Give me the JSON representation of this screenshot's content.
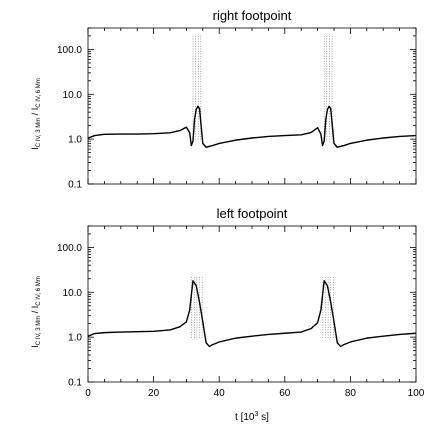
{
  "chart_data": [
    {
      "type": "line",
      "title": "right footpoint",
      "ylabel": "I",
      "xlim": [
        0,
        100
      ],
      "ylim": [
        0.1,
        300
      ],
      "yscale": "log",
      "yticks": [
        0.1,
        1.0,
        10.0,
        100.0
      ],
      "ytick_labels": [
        "0.1",
        "1.0",
        "10.0",
        "100.0"
      ],
      "xticks": [
        0,
        20,
        40,
        60,
        80,
        100
      ],
      "xtick_labels": [
        "",
        "",
        "",
        "",
        "",
        ""
      ],
      "series": [
        {
          "x": [
            0,
            2,
            5,
            10,
            15,
            20,
            25,
            28,
            30,
            31,
            31.5,
            32,
            32.5,
            33,
            33.5,
            34,
            35,
            36,
            38,
            40,
            45,
            50,
            55,
            60,
            65,
            68,
            70,
            71,
            71.5,
            72,
            72.5,
            73,
            73.5,
            74,
            75,
            76,
            78,
            80,
            85,
            90,
            95,
            100
          ],
          "y": [
            1.05,
            1.2,
            1.28,
            1.3,
            1.3,
            1.32,
            1.38,
            1.55,
            1.85,
            1.4,
            0.72,
            0.9,
            2.8,
            4.6,
            5.4,
            4.8,
            0.8,
            0.66,
            0.72,
            0.8,
            0.95,
            1.06,
            1.15,
            1.2,
            1.25,
            1.4,
            1.8,
            1.3,
            0.72,
            0.9,
            2.8,
            4.6,
            5.4,
            4.8,
            0.8,
            0.66,
            0.72,
            0.8,
            0.95,
            1.06,
            1.15,
            1.2
          ]
        }
      ],
      "spikes": [
        {
          "x": [
            32.0,
            32.8,
            33.6,
            34.4
          ],
          "ymax": 200
        },
        {
          "x": [
            72.0,
            72.8,
            73.6,
            74.4
          ],
          "ymax": 200
        }
      ]
    },
    {
      "type": "line",
      "title": "left footpoint",
      "ylabel": "I",
      "xlabel": "t [10",
      "xlim": [
        0,
        100
      ],
      "ylim": [
        0.1,
        300
      ],
      "yscale": "log",
      "yticks": [
        0.1,
        1.0,
        10.0,
        100.0
      ],
      "ytick_labels": [
        "0.1",
        "1.0",
        "10.0",
        "100.0"
      ],
      "xticks": [
        0,
        20,
        40,
        60,
        80,
        100
      ],
      "xtick_labels": [
        "0",
        "20",
        "40",
        "60",
        "80",
        "100"
      ],
      "series": [
        {
          "x": [
            0,
            2,
            5,
            10,
            15,
            20,
            25,
            28,
            30,
            31,
            32,
            33,
            34,
            35,
            36,
            37,
            38,
            40,
            45,
            50,
            55,
            60,
            65,
            68,
            70,
            71,
            72,
            73,
            74,
            75,
            76,
            77,
            78,
            80,
            85,
            90,
            95,
            100
          ],
          "y": [
            1.05,
            1.2,
            1.26,
            1.3,
            1.32,
            1.35,
            1.45,
            1.7,
            2.2,
            4.0,
            18,
            14,
            6.0,
            2.2,
            0.75,
            0.62,
            0.68,
            0.78,
            0.95,
            1.05,
            1.15,
            1.22,
            1.3,
            1.55,
            2.1,
            4.0,
            18,
            14,
            6.0,
            2.2,
            0.75,
            0.62,
            0.68,
            0.78,
            0.95,
            1.05,
            1.15,
            1.22
          ]
        }
      ],
      "spikes": [
        {
          "x": [
            31.6,
            32.4,
            33.2,
            34.0,
            34.8
          ],
          "ymax": 22
        },
        {
          "x": [
            71.6,
            72.4,
            73.2,
            74.0,
            74.8
          ],
          "ymax": 22
        }
      ]
    }
  ]
}
